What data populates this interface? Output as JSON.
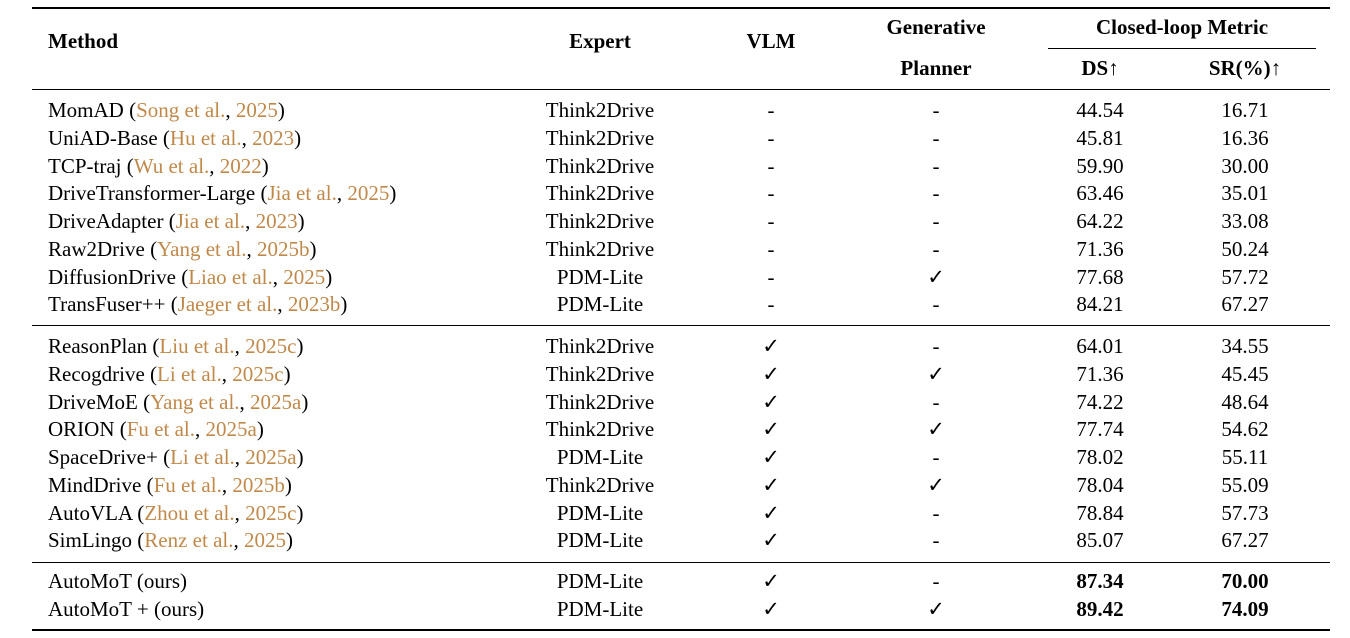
{
  "table": {
    "headers": {
      "method": "Method",
      "expert": "Expert",
      "vlm": "VLM",
      "generative_line1": "Generative",
      "generative_line2": "Planner",
      "closed_loop": "Closed-loop Metric",
      "ds": "DS↑",
      "sr": "SR(%)↑"
    },
    "group1": [
      {
        "name": "MomAD",
        "cite_pre": "(",
        "cite_author": "Song et al.",
        "cite_mid": ", ",
        "cite_year": "2025",
        "cite_post": ")",
        "expert": "Think2Drive",
        "vlm": "-",
        "gen": "-",
        "ds": "44.54",
        "sr": "16.71"
      },
      {
        "name": "UniAD-Base",
        "cite_pre": "(",
        "cite_author": "Hu et al.",
        "cite_mid": ", ",
        "cite_year": "2023",
        "cite_post": ")",
        "expert": "Think2Drive",
        "vlm": "-",
        "gen": "-",
        "ds": "45.81",
        "sr": "16.36"
      },
      {
        "name": "TCP-traj",
        "cite_pre": "(",
        "cite_author": "Wu et al.",
        "cite_mid": ", ",
        "cite_year": "2022",
        "cite_post": ")",
        "expert": "Think2Drive",
        "vlm": "-",
        "gen": "-",
        "ds": "59.90",
        "sr": "30.00"
      },
      {
        "name": "DriveTransformer-Large",
        "cite_pre": "(",
        "cite_author": "Jia et al.",
        "cite_mid": ", ",
        "cite_year": "2025",
        "cite_post": ")",
        "expert": "Think2Drive",
        "vlm": "-",
        "gen": "-",
        "ds": "63.46",
        "sr": "35.01"
      },
      {
        "name": "DriveAdapter",
        "cite_pre": "(",
        "cite_author": "Jia et al.",
        "cite_mid": ", ",
        "cite_year": "2023",
        "cite_post": ")",
        "expert": "Think2Drive",
        "vlm": "-",
        "gen": "-",
        "ds": "64.22",
        "sr": "33.08"
      },
      {
        "name": "Raw2Drive",
        "cite_pre": "(",
        "cite_author": "Yang et al.",
        "cite_mid": ", ",
        "cite_year": "2025b",
        "cite_post": ")",
        "expert": "Think2Drive",
        "vlm": "-",
        "gen": "-",
        "ds": "71.36",
        "sr": "50.24"
      },
      {
        "name": "DiffusionDrive",
        "cite_pre": "(",
        "cite_author": "Liao et al.",
        "cite_mid": ", ",
        "cite_year": "2025",
        "cite_post": ")",
        "expert": "PDM-Lite",
        "vlm": "-",
        "gen": "✓",
        "ds": "77.68",
        "sr": "57.72"
      },
      {
        "name": "TransFuser++",
        "cite_pre": "(",
        "cite_author": "Jaeger et al.",
        "cite_mid": ", ",
        "cite_year": "2023b",
        "cite_post": ")",
        "expert": "PDM-Lite",
        "vlm": "-",
        "gen": "-",
        "ds": "84.21",
        "sr": "67.27"
      }
    ],
    "group2": [
      {
        "name": "ReasonPlan",
        "cite_pre": "(",
        "cite_author": "Liu et al.",
        "cite_mid": ", ",
        "cite_year": "2025c",
        "cite_post": ")",
        "expert": "Think2Drive",
        "vlm": "✓",
        "gen": "-",
        "ds": "64.01",
        "sr": "34.55"
      },
      {
        "name": "Recogdrive",
        "cite_pre": "(",
        "cite_author": "Li et al.",
        "cite_mid": ", ",
        "cite_year": "2025c",
        "cite_post": ")",
        "expert": "Think2Drive",
        "vlm": "✓",
        "gen": "✓",
        "ds": "71.36",
        "sr": "45.45"
      },
      {
        "name": "DriveMoE",
        "cite_pre": "(",
        "cite_author": "Yang et al.",
        "cite_mid": ", ",
        "cite_year": "2025a",
        "cite_post": ")",
        "expert": "Think2Drive",
        "vlm": "✓",
        "gen": "-",
        "ds": "74.22",
        "sr": "48.64"
      },
      {
        "name": "ORION",
        "cite_pre": "(",
        "cite_author": "Fu et al.",
        "cite_mid": ", ",
        "cite_year": "2025a",
        "cite_post": ")",
        "expert": "Think2Drive",
        "vlm": "✓",
        "gen": "✓",
        "ds": "77.74",
        "sr": "54.62"
      },
      {
        "name": "SpaceDrive+",
        "cite_pre": "(",
        "cite_author": "Li et al.",
        "cite_mid": ", ",
        "cite_year": "2025a",
        "cite_post": ")",
        "expert": "PDM-Lite",
        "vlm": "✓",
        "gen": "-",
        "ds": "78.02",
        "sr": "55.11"
      },
      {
        "name": "MindDrive",
        "cite_pre": "(",
        "cite_author": "Fu et al.",
        "cite_mid": ", ",
        "cite_year": "2025b",
        "cite_post": ")",
        "expert": "Think2Drive",
        "vlm": "✓",
        "gen": "✓",
        "ds": "78.04",
        "sr": "55.09"
      },
      {
        "name": "AutoVLA",
        "cite_pre": "(",
        "cite_author": "Zhou et al.",
        "cite_mid": ", ",
        "cite_year": "2025c",
        "cite_post": ")",
        "expert": "PDM-Lite",
        "vlm": "✓",
        "gen": "-",
        "ds": "78.84",
        "sr": "57.73"
      },
      {
        "name": "SimLingo",
        "cite_pre": "(",
        "cite_author": "Renz et al.",
        "cite_mid": ", ",
        "cite_year": "2025",
        "cite_post": ")",
        "expert": "PDM-Lite",
        "vlm": "✓",
        "gen": "-",
        "ds": "85.07",
        "sr": "67.27"
      }
    ],
    "group3": [
      {
        "name": "AutoMoT (ours)",
        "cite_pre": "",
        "cite_author": "",
        "cite_mid": "",
        "cite_year": "",
        "cite_post": "",
        "expert": "PDM-Lite",
        "vlm": "✓",
        "gen": "-",
        "ds": "87.34",
        "sr": "70.00",
        "bold": true
      },
      {
        "name": "AutoMoT + (ours)",
        "cite_pre": "",
        "cite_author": "",
        "cite_mid": "",
        "cite_year": "",
        "cite_post": "",
        "expert": "PDM-Lite",
        "vlm": "✓",
        "gen": "✓",
        "ds": "89.42",
        "sr": "74.09",
        "bold": true
      }
    ]
  },
  "colors": {
    "citation": "#c0894a",
    "text": "#000000",
    "rule": "#000000"
  }
}
